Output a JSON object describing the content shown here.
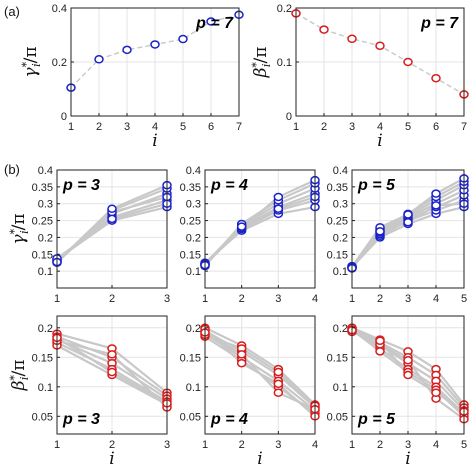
{
  "figure": {
    "panel_labels": [
      "(a)",
      "(b)"
    ],
    "colors": {
      "gamma": "#1a22c8",
      "beta": "#d81c1c",
      "trace": "#c8c8c8",
      "grid": "#e4e4e4"
    }
  },
  "chart_data": [
    {
      "id": "a-gamma",
      "type": "scatter",
      "connected": true,
      "annotation": "p = 7",
      "ylabel": "γ*_i/π",
      "xlabel": "i",
      "xlim": [
        1,
        7
      ],
      "ylim": [
        0,
        0.4
      ],
      "xticks": [
        1,
        2,
        3,
        4,
        5,
        6,
        7
      ],
      "yticks": [
        0,
        0.2,
        0.4
      ],
      "series": [
        {
          "x": [
            1,
            2,
            3,
            4,
            5,
            6,
            7
          ],
          "values": [
            0.105,
            0.21,
            0.245,
            0.265,
            0.285,
            0.35,
            0.375
          ]
        }
      ]
    },
    {
      "id": "a-beta",
      "type": "scatter",
      "connected": true,
      "annotation": "p = 7",
      "ylabel": "β*_i/π",
      "xlabel": "i",
      "xlim": [
        1,
        7
      ],
      "ylim": [
        0,
        0.2
      ],
      "xticks": [
        1,
        2,
        3,
        4,
        5,
        6,
        7
      ],
      "yticks": [
        0,
        0.1,
        0.2
      ],
      "series": [
        {
          "x": [
            1,
            2,
            3,
            4,
            5,
            6,
            7
          ],
          "values": [
            0.19,
            0.16,
            0.143,
            0.13,
            0.1,
            0.07,
            0.04
          ]
        }
      ]
    },
    {
      "id": "b-gamma-3",
      "type": "scatter",
      "connected": true,
      "annotation": "p = 3",
      "ylabel": "γ*_i/π",
      "xlabel": "",
      "xlim": [
        1,
        3
      ],
      "ylim": [
        0.05,
        0.4
      ],
      "xticks": [
        1,
        2,
        3
      ],
      "yticks": [
        0.1,
        0.15,
        0.2,
        0.25,
        0.3,
        0.35,
        0.4
      ],
      "series": [
        {
          "x": [
            1,
            2,
            3
          ],
          "values": [
            0.135,
            0.25,
            0.29
          ]
        },
        {
          "x": [
            1,
            2,
            3
          ],
          "values": [
            0.132,
            0.26,
            0.31
          ]
        },
        {
          "x": [
            1,
            2,
            3
          ],
          "values": [
            0.128,
            0.27,
            0.33
          ]
        },
        {
          "x": [
            1,
            2,
            3
          ],
          "values": [
            0.125,
            0.28,
            0.345
          ]
        },
        {
          "x": [
            1,
            2,
            3
          ],
          "values": [
            0.13,
            0.275,
            0.32
          ]
        },
        {
          "x": [
            1,
            2,
            3
          ],
          "values": [
            0.138,
            0.255,
            0.3
          ]
        },
        {
          "x": [
            1,
            2,
            3
          ],
          "values": [
            0.127,
            0.285,
            0.355
          ]
        }
      ]
    },
    {
      "id": "b-gamma-4",
      "type": "scatter",
      "connected": true,
      "annotation": "p = 4",
      "ylabel": "",
      "xlabel": "",
      "xlim": [
        1,
        4
      ],
      "ylim": [
        0.05,
        0.4
      ],
      "xticks": [
        1,
        2,
        3,
        4
      ],
      "yticks": [
        0.1,
        0.15,
        0.2,
        0.25,
        0.3,
        0.35,
        0.4
      ],
      "series": [
        {
          "x": [
            1,
            2,
            3,
            4
          ],
          "values": [
            0.125,
            0.22,
            0.27,
            0.29
          ]
        },
        {
          "x": [
            1,
            2,
            3,
            4
          ],
          "values": [
            0.12,
            0.225,
            0.28,
            0.31
          ]
        },
        {
          "x": [
            1,
            2,
            3,
            4
          ],
          "values": [
            0.118,
            0.23,
            0.29,
            0.33
          ]
        },
        {
          "x": [
            1,
            2,
            3,
            4
          ],
          "values": [
            0.122,
            0.235,
            0.3,
            0.345
          ]
        },
        {
          "x": [
            1,
            2,
            3,
            4
          ],
          "values": [
            0.115,
            0.24,
            0.31,
            0.36
          ]
        },
        {
          "x": [
            1,
            2,
            3,
            4
          ],
          "values": [
            0.12,
            0.228,
            0.32,
            0.37
          ]
        },
        {
          "x": [
            1,
            2,
            3,
            4
          ],
          "values": [
            0.118,
            0.232,
            0.285,
            0.32
          ]
        }
      ]
    },
    {
      "id": "b-gamma-5",
      "type": "scatter",
      "connected": true,
      "annotation": "p = 5",
      "ylabel": "",
      "xlabel": "",
      "xlim": [
        1,
        5
      ],
      "ylim": [
        0.05,
        0.4
      ],
      "xticks": [
        1,
        2,
        3,
        4,
        5
      ],
      "yticks": [
        0.1,
        0.15,
        0.2,
        0.25,
        0.3,
        0.35,
        0.4
      ],
      "series": [
        {
          "x": [
            1,
            2,
            3,
            4,
            5
          ],
          "values": [
            0.112,
            0.2,
            0.24,
            0.27,
            0.29
          ]
        },
        {
          "x": [
            1,
            2,
            3,
            4,
            5
          ],
          "values": [
            0.115,
            0.205,
            0.25,
            0.28,
            0.31
          ]
        },
        {
          "x": [
            1,
            2,
            3,
            4,
            5
          ],
          "values": [
            0.11,
            0.21,
            0.255,
            0.29,
            0.325
          ]
        },
        {
          "x": [
            1,
            2,
            3,
            4,
            5
          ],
          "values": [
            0.108,
            0.215,
            0.26,
            0.3,
            0.34
          ]
        },
        {
          "x": [
            1,
            2,
            3,
            4,
            5
          ],
          "values": [
            0.112,
            0.22,
            0.265,
            0.31,
            0.355
          ]
        },
        {
          "x": [
            1,
            2,
            3,
            4,
            5
          ],
          "values": [
            0.11,
            0.225,
            0.27,
            0.32,
            0.365
          ]
        },
        {
          "x": [
            1,
            2,
            3,
            4,
            5
          ],
          "values": [
            0.113,
            0.23,
            0.268,
            0.33,
            0.375
          ]
        },
        {
          "x": [
            1,
            2,
            3,
            4,
            5
          ],
          "values": [
            0.109,
            0.218,
            0.245,
            0.295,
            0.3
          ]
        }
      ]
    },
    {
      "id": "b-beta-3",
      "type": "scatter",
      "connected": true,
      "annotation": "p = 3",
      "ylabel": "β*_i/π",
      "xlabel": "i",
      "xlim": [
        1,
        3
      ],
      "ylim": [
        0.02,
        0.22
      ],
      "xticks": [
        1,
        2,
        3
      ],
      "yticks": [
        0.05,
        0.1,
        0.15,
        0.2
      ],
      "series": [
        {
          "x": [
            1,
            2,
            3
          ],
          "values": [
            0.19,
            0.165,
            0.09
          ]
        },
        {
          "x": [
            1,
            2,
            3
          ],
          "values": [
            0.185,
            0.15,
            0.085
          ]
        },
        {
          "x": [
            1,
            2,
            3
          ],
          "values": [
            0.18,
            0.14,
            0.08
          ]
        },
        {
          "x": [
            1,
            2,
            3
          ],
          "values": [
            0.175,
            0.13,
            0.075
          ]
        },
        {
          "x": [
            1,
            2,
            3
          ],
          "values": [
            0.17,
            0.12,
            0.07
          ]
        },
        {
          "x": [
            1,
            2,
            3
          ],
          "values": [
            0.178,
            0.155,
            0.065
          ]
        },
        {
          "x": [
            1,
            2,
            3
          ],
          "values": [
            0.183,
            0.125,
            0.072
          ]
        }
      ]
    },
    {
      "id": "b-beta-4",
      "type": "scatter",
      "connected": true,
      "annotation": "p = 4",
      "ylabel": "",
      "xlabel": "i",
      "xlim": [
        1,
        4
      ],
      "ylim": [
        0.02,
        0.22
      ],
      "xticks": [
        1,
        2,
        3,
        4
      ],
      "yticks": [
        0.05,
        0.1,
        0.15,
        0.2
      ],
      "series": [
        {
          "x": [
            1,
            2,
            3,
            4
          ],
          "values": [
            0.2,
            0.17,
            0.13,
            0.07
          ]
        },
        {
          "x": [
            1,
            2,
            3,
            4
          ],
          "values": [
            0.195,
            0.16,
            0.12,
            0.065
          ]
        },
        {
          "x": [
            1,
            2,
            3,
            4
          ],
          "values": [
            0.19,
            0.15,
            0.11,
            0.06
          ]
        },
        {
          "x": [
            1,
            2,
            3,
            4
          ],
          "values": [
            0.185,
            0.145,
            0.1,
            0.055
          ]
        },
        {
          "x": [
            1,
            2,
            3,
            4
          ],
          "values": [
            0.198,
            0.14,
            0.105,
            0.05
          ]
        },
        {
          "x": [
            1,
            2,
            3,
            4
          ],
          "values": [
            0.188,
            0.165,
            0.125,
            0.068
          ]
        },
        {
          "x": [
            1,
            2,
            3,
            4
          ],
          "values": [
            0.192,
            0.155,
            0.09,
            0.062
          ]
        }
      ]
    },
    {
      "id": "b-beta-5",
      "type": "scatter",
      "connected": true,
      "annotation": "p = 5",
      "ylabel": "",
      "xlabel": "i",
      "xlim": [
        1,
        5
      ],
      "ylim": [
        0.02,
        0.22
      ],
      "xticks": [
        1,
        2,
        3,
        4,
        5
      ],
      "yticks": [
        0.05,
        0.1,
        0.15,
        0.2
      ],
      "series": [
        {
          "x": [
            1,
            2,
            3,
            4,
            5
          ],
          "values": [
            0.2,
            0.18,
            0.16,
            0.13,
            0.07
          ]
        },
        {
          "x": [
            1,
            2,
            3,
            4,
            5
          ],
          "values": [
            0.198,
            0.175,
            0.15,
            0.12,
            0.065
          ]
        },
        {
          "x": [
            1,
            2,
            3,
            4,
            5
          ],
          "values": [
            0.195,
            0.17,
            0.14,
            0.11,
            0.06
          ]
        },
        {
          "x": [
            1,
            2,
            3,
            4,
            5
          ],
          "values": [
            0.2,
            0.165,
            0.13,
            0.1,
            0.055
          ]
        },
        {
          "x": [
            1,
            2,
            3,
            4,
            5
          ],
          "values": [
            0.197,
            0.16,
            0.125,
            0.095,
            0.05
          ]
        },
        {
          "x": [
            1,
            2,
            3,
            4,
            5
          ],
          "values": [
            0.193,
            0.172,
            0.145,
            0.08,
            0.045
          ]
        },
        {
          "x": [
            1,
            2,
            3,
            4,
            5
          ],
          "values": [
            0.196,
            0.178,
            0.12,
            0.09,
            0.058
          ]
        }
      ]
    }
  ]
}
